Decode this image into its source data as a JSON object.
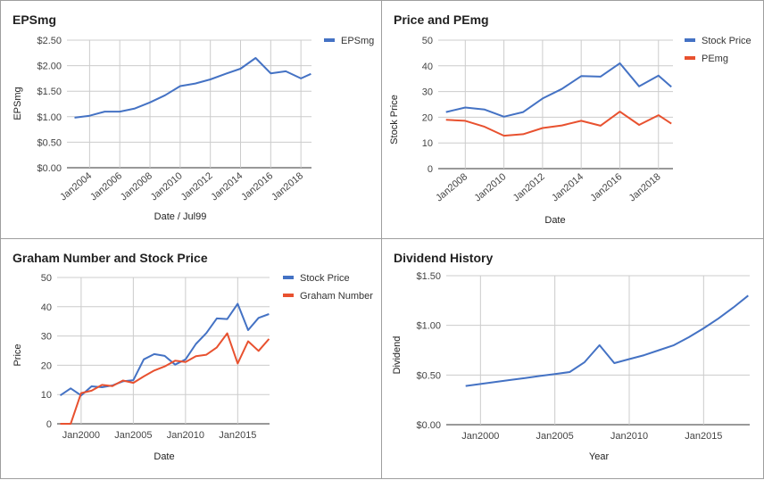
{
  "chart_data": [
    {
      "type": "line",
      "title": "EPSmg",
      "xlabel": "Date / Jul99",
      "ylabel": "EPSmg",
      "ylim": [
        0,
        2.5
      ],
      "yticks": [
        "$0.00",
        "$0.50",
        "$1.00",
        "$1.50",
        "$2.00",
        "$2.50"
      ],
      "xticks": [
        "Jan2004",
        "Jan2006",
        "Jan2008",
        "Jan2010",
        "Jan2012",
        "Jan2014",
        "Jan2016",
        "Jan2018"
      ],
      "legend_position": "top-right",
      "series": [
        {
          "name": "EPSmg",
          "color": "#4472c4",
          "x": [
            "2003-01",
            "2004-01",
            "2005-01",
            "2006-01",
            "2007-01",
            "2008-01",
            "2009-01",
            "2010-01",
            "2011-01",
            "2012-01",
            "2013-01",
            "2014-01",
            "2015-01",
            "2016-01",
            "2017-01",
            "2018-01",
            "2018-09"
          ],
          "values": [
            0.98,
            1.02,
            1.1,
            1.1,
            1.16,
            1.28,
            1.42,
            1.6,
            1.65,
            1.73,
            1.84,
            1.94,
            2.15,
            1.85,
            1.89,
            1.75,
            1.84
          ]
        }
      ]
    },
    {
      "type": "line",
      "title": "Price and PEmg",
      "xlabel": "Date",
      "ylabel": "Stock Price",
      "ylim": [
        0,
        50
      ],
      "yticks": [
        "0",
        "10",
        "20",
        "30",
        "40",
        "50"
      ],
      "xticks": [
        "Jan2008",
        "Jan2010",
        "Jan2012",
        "Jan2014",
        "Jan2016",
        "Jan2018"
      ],
      "legend_position": "top-right",
      "series": [
        {
          "name": "Stock Price",
          "color": "#4472c4",
          "x": [
            "2007-01",
            "2008-01",
            "2009-01",
            "2010-01",
            "2011-01",
            "2012-01",
            "2013-01",
            "2014-01",
            "2015-01",
            "2016-01",
            "2017-01",
            "2018-01",
            "2018-09"
          ],
          "values": [
            22,
            23.8,
            23,
            20.2,
            22,
            27.3,
            31,
            36,
            35.8,
            41,
            32,
            36.2,
            31.8
          ]
        },
        {
          "name": "PEmg",
          "color": "#e8512f",
          "x": [
            "2007-01",
            "2008-01",
            "2009-01",
            "2010-01",
            "2011-01",
            "2012-01",
            "2013-01",
            "2014-01",
            "2015-01",
            "2016-01",
            "2017-01",
            "2018-01",
            "2018-09"
          ],
          "values": [
            19,
            18.6,
            16.3,
            12.8,
            13.4,
            15.8,
            16.8,
            18.6,
            16.7,
            22.2,
            17,
            20.8,
            17.5
          ]
        }
      ]
    },
    {
      "type": "line",
      "title": "Graham Number and Stock Price",
      "xlabel": "Date",
      "ylabel": "Price",
      "ylim": [
        0,
        50
      ],
      "yticks": [
        "0",
        "10",
        "20",
        "30",
        "40",
        "50"
      ],
      "xticks": [
        "Jan2000",
        "Jan2005",
        "Jan2010",
        "Jan2015"
      ],
      "legend_position": "top-right",
      "series": [
        {
          "name": "Stock Price",
          "color": "#4472c4",
          "x": [
            "1998-01",
            "1999-01",
            "2000-01",
            "2001-01",
            "2002-01",
            "2003-01",
            "2004-01",
            "2005-01",
            "2006-01",
            "2007-01",
            "2008-01",
            "2009-01",
            "2010-01",
            "2011-01",
            "2012-01",
            "2013-01",
            "2014-01",
            "2015-01",
            "2016-01",
            "2017-01",
            "2018-01"
          ],
          "values": [
            9.7,
            12.1,
            9.7,
            12.8,
            12.5,
            13.1,
            14.5,
            14.9,
            22,
            23.8,
            23.2,
            20.2,
            22,
            27.3,
            31,
            36,
            35.8,
            41,
            32,
            36.2,
            37.5
          ]
        },
        {
          "name": "Graham Number",
          "color": "#e8512f",
          "x": [
            "1998-01",
            "1999-01",
            "2000-01",
            "2001-01",
            "2002-01",
            "2003-01",
            "2004-01",
            "2005-01",
            "2006-01",
            "2007-01",
            "2008-01",
            "2009-01",
            "2010-01",
            "2011-01",
            "2012-01",
            "2013-01",
            "2014-01",
            "2015-01",
            "2016-01",
            "2017-01",
            "2018-01"
          ],
          "values": [
            0,
            0,
            10.5,
            11.3,
            13.3,
            12.9,
            14.8,
            14,
            16.2,
            18.2,
            19.6,
            21.6,
            21.1,
            23.1,
            23.6,
            26.1,
            30.9,
            20.6,
            28.2,
            24.9,
            29
          ]
        }
      ]
    },
    {
      "type": "line",
      "title": "Dividend History",
      "xlabel": "Year",
      "ylabel": "Dividend",
      "ylim": [
        0,
        1.5
      ],
      "yticks": [
        "$0.00",
        "$0.50",
        "$1.00",
        "$1.50"
      ],
      "xticks": [
        "Jan2000",
        "Jan2005",
        "Jan2010",
        "Jan2015"
      ],
      "series": [
        {
          "name": "",
          "color": "#4472c4",
          "x": [
            "1999-01",
            "2000-01",
            "2001-01",
            "2002-01",
            "2003-01",
            "2004-01",
            "2005-01",
            "2006-01",
            "2007-01",
            "2008-01",
            "2009-01",
            "2010-01",
            "2011-01",
            "2012-01",
            "2013-01",
            "2014-01",
            "2015-01",
            "2016-01",
            "2017-01",
            "2018-01"
          ],
          "values": [
            0.39,
            0.41,
            0.43,
            0.45,
            0.47,
            0.49,
            0.51,
            0.53,
            0.63,
            0.8,
            0.62,
            0.66,
            0.7,
            0.75,
            0.8,
            0.88,
            0.97,
            1.07,
            1.18,
            1.3
          ]
        }
      ]
    }
  ]
}
